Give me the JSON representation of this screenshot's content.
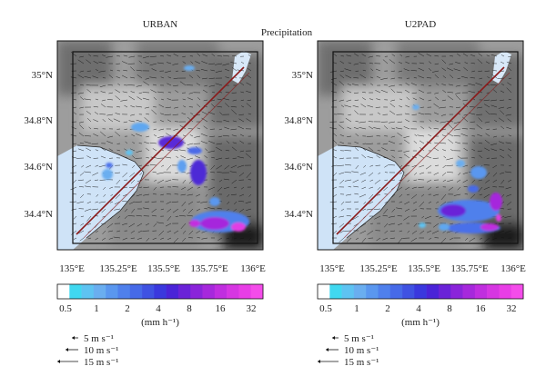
{
  "figure": {
    "title": "Precipitation",
    "panels": [
      {
        "title": "URBAN"
      },
      {
        "title": "U2PAD"
      }
    ],
    "lat_ticks": [
      "35°N",
      "34.8°N",
      "34.6°N",
      "34.4°N"
    ],
    "lon_ticks": [
      "135°E",
      "135.25°E",
      "135.5°E",
      "135.75°E",
      "136°E"
    ],
    "colorbar": {
      "labels": [
        "0.5",
        "1",
        "2",
        "4",
        "8",
        "16",
        "32"
      ],
      "unit": "(mm h⁻¹)",
      "colors": [
        "#ffffff",
        "#40d8f0",
        "#5ec3f2",
        "#6aaef0",
        "#5a97ef",
        "#4f80ec",
        "#466ae8",
        "#3f52e2",
        "#3a38de",
        "#4a24d8",
        "#6a22d8",
        "#8a24da",
        "#a628dc",
        "#c02edf",
        "#d636e2",
        "#e83ee6",
        "#f44cea"
      ]
    },
    "wind_legend": [
      "5 m s⁻¹",
      "10 m s⁻¹",
      "15 m s⁻¹"
    ],
    "colors": {
      "cross_section_line": "#8b1a1a",
      "water": "#cfe3f7",
      "frame": "#111111"
    }
  }
}
